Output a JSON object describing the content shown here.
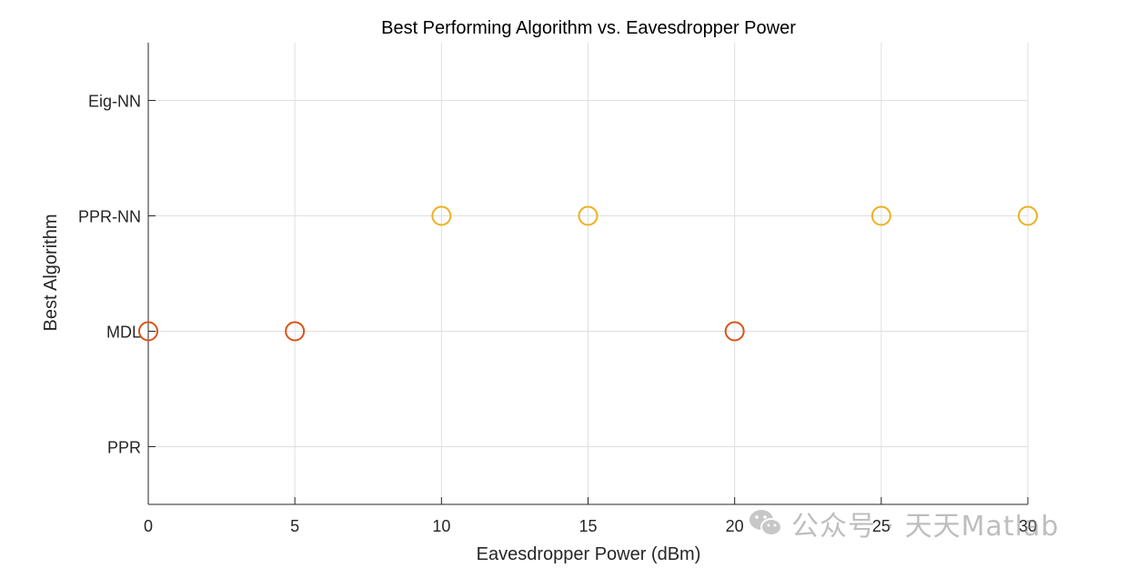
{
  "chart_data": {
    "type": "scatter",
    "title": "Best Performing Algorithm vs. Eavesdropper Power",
    "xlabel": "Eavesdropper Power (dBm)",
    "ylabel": "Best Algorithm",
    "xlim": [
      0,
      30
    ],
    "ylim": [
      0.5,
      4.5
    ],
    "xticks": [
      0,
      5,
      10,
      15,
      20,
      25,
      30
    ],
    "yticks": [
      1,
      2,
      3,
      4
    ],
    "ytick_labels": [
      "PPR",
      "MDL",
      "PPR-NN",
      "Eig-NN"
    ],
    "grid": true,
    "marker": "circle-open",
    "points": [
      {
        "x": 0,
        "y": 2,
        "label": "MDL",
        "color": "#d95319"
      },
      {
        "x": 5,
        "y": 2,
        "label": "MDL",
        "color": "#d95319"
      },
      {
        "x": 10,
        "y": 3,
        "label": "PPR-NN",
        "color": "#edb120"
      },
      {
        "x": 15,
        "y": 3,
        "label": "PPR-NN",
        "color": "#edb120"
      },
      {
        "x": 20,
        "y": 2,
        "label": "MDL",
        "color": "#d95319"
      },
      {
        "x": 25,
        "y": 3,
        "label": "PPR-NN",
        "color": "#edb120"
      },
      {
        "x": 30,
        "y": 3,
        "label": "PPR-NN",
        "color": "#edb120"
      }
    ]
  },
  "watermark": {
    "text": "公众号 · 天天Matlab",
    "icon": "wechat-icon"
  }
}
